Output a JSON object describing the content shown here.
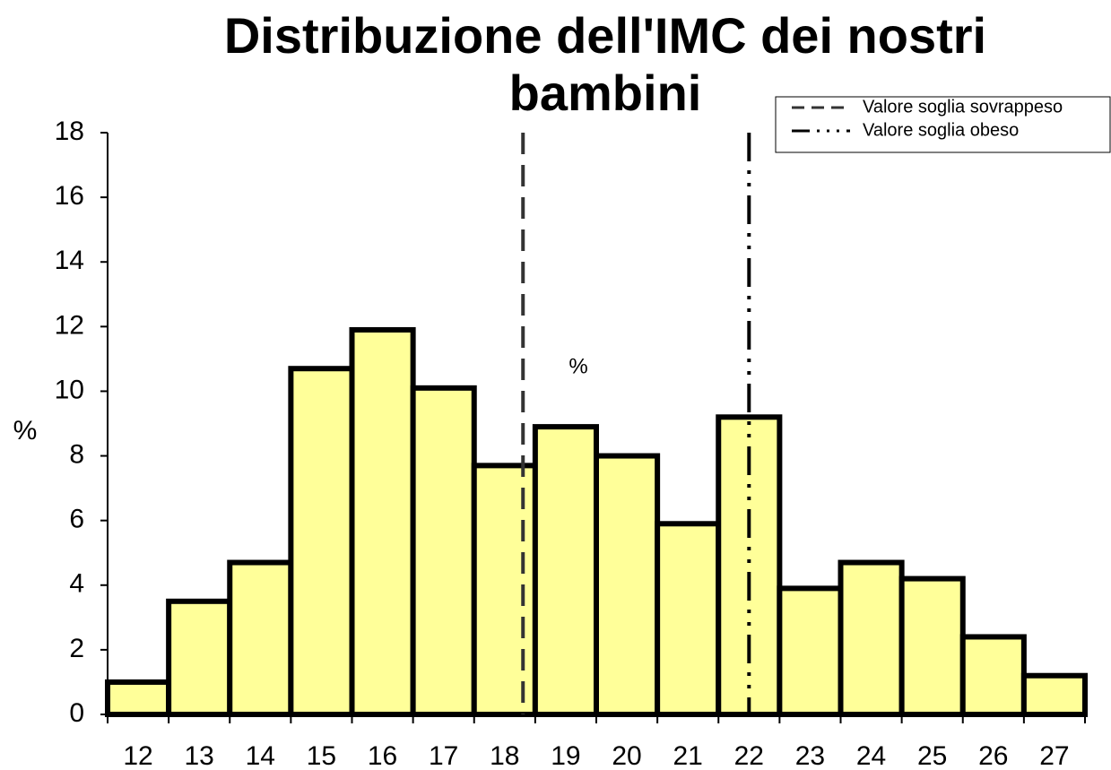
{
  "chart_data": {
    "type": "bar",
    "title": "Distribuzione dell'IMC dei nostri bambini",
    "y_label": "%",
    "annotations": [
      {
        "text": "%"
      }
    ],
    "categories": [
      12,
      13,
      14,
      15,
      16,
      17,
      18,
      19,
      20,
      21,
      22,
      23,
      24,
      25,
      26,
      27
    ],
    "values": [
      1.0,
      3.5,
      4.7,
      10.7,
      11.9,
      10.1,
      7.7,
      8.9,
      8.0,
      5.9,
      9.2,
      3.9,
      4.7,
      4.2,
      2.4,
      1.2
    ],
    "color": "#ffff99",
    "edge_color": "#000000",
    "ylim": [
      0,
      18
    ],
    "yticks": [
      0,
      2,
      4,
      6,
      8,
      10,
      12,
      14,
      16,
      18
    ],
    "reference_lines": [
      {
        "name": "Valore soglia sovrappeso",
        "x": 18.3,
        "style": "dashed",
        "color": "#333333"
      },
      {
        "name": "Valore soglia obeso",
        "x": 22.0,
        "style": "dash-dot-dot",
        "color": "#000000"
      }
    ],
    "legend": "upper right"
  }
}
